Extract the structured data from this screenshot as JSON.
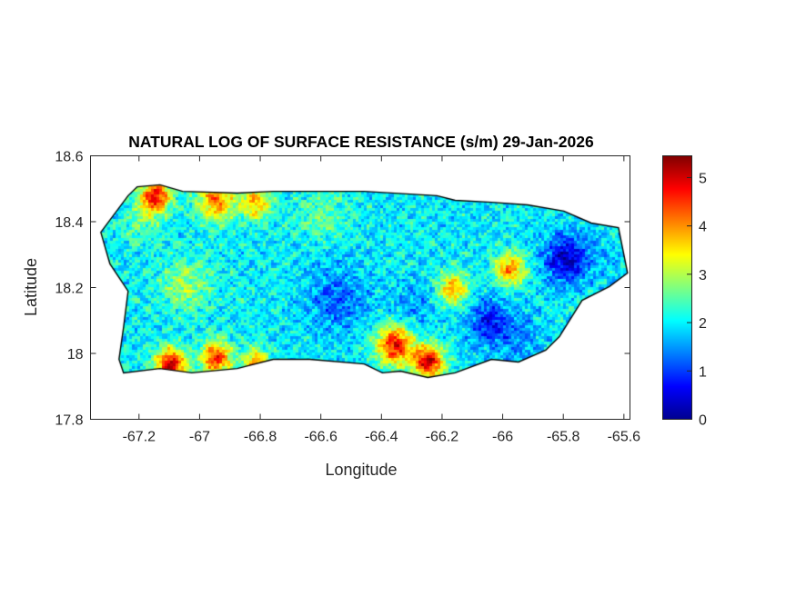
{
  "chart_data": {
    "type": "heatmap",
    "title": "NATURAL LOG OF SURFACE RESISTANCE (s/m) 29-Jan-2026",
    "xlabel": "Longitude",
    "ylabel": "Latitude",
    "xlim": [
      -67.36,
      -65.58
    ],
    "ylim": [
      17.8,
      18.6
    ],
    "xticks": [
      -67.2,
      -67,
      -66.8,
      -66.6,
      -66.4,
      -66.2,
      -66,
      -65.8,
      -65.6
    ],
    "xtick_labels": [
      "-67.2",
      "-67",
      "-66.8",
      "-66.6",
      "-66.4",
      "-66.2",
      "-66",
      "-65.8",
      "-65.6"
    ],
    "yticks": [
      17.8,
      18,
      18.2,
      18.4,
      18.6
    ],
    "ytick_labels": [
      "17.8",
      "18",
      "18.2",
      "18.4",
      "18.6"
    ],
    "colorbar": {
      "colormap": "jet",
      "range": [
        0,
        5.45
      ],
      "ticks": [
        0,
        1,
        2,
        3,
        4,
        5
      ],
      "tick_labels": [
        "0",
        "1",
        "2",
        "3",
        "4",
        "5"
      ],
      "location": "right"
    },
    "grid": false,
    "island_outline_lonlat": [
      [
        -67.326,
        18.368
      ],
      [
        -67.236,
        18.479
      ],
      [
        -67.206,
        18.506
      ],
      [
        -67.131,
        18.512
      ],
      [
        -67.056,
        18.492
      ],
      [
        -66.876,
        18.487
      ],
      [
        -66.757,
        18.492
      ],
      [
        -66.457,
        18.492
      ],
      [
        -66.217,
        18.479
      ],
      [
        -66.157,
        18.465
      ],
      [
        -66.037,
        18.459
      ],
      [
        -65.918,
        18.451
      ],
      [
        -65.798,
        18.432
      ],
      [
        -65.708,
        18.396
      ],
      [
        -65.618,
        18.382
      ],
      [
        -65.588,
        18.244
      ],
      [
        -65.648,
        18.203
      ],
      [
        -65.738,
        18.161
      ],
      [
        -65.813,
        18.051
      ],
      [
        -65.858,
        18.01
      ],
      [
        -65.948,
        17.974
      ],
      [
        -66.037,
        17.982
      ],
      [
        -66.157,
        17.941
      ],
      [
        -66.247,
        17.927
      ],
      [
        -66.337,
        17.946
      ],
      [
        -66.397,
        17.941
      ],
      [
        -66.457,
        17.968
      ],
      [
        -66.637,
        17.982
      ],
      [
        -66.757,
        17.982
      ],
      [
        -66.876,
        17.954
      ],
      [
        -67.026,
        17.941
      ],
      [
        -67.131,
        17.954
      ],
      [
        -67.251,
        17.941
      ],
      [
        -67.266,
        17.982
      ],
      [
        -67.251,
        18.079
      ],
      [
        -67.236,
        18.189
      ],
      [
        -67.296,
        18.272
      ],
      [
        -67.326,
        18.368
      ]
    ],
    "colors": {
      "outline": "#000000",
      "axes": "#262626"
    }
  }
}
